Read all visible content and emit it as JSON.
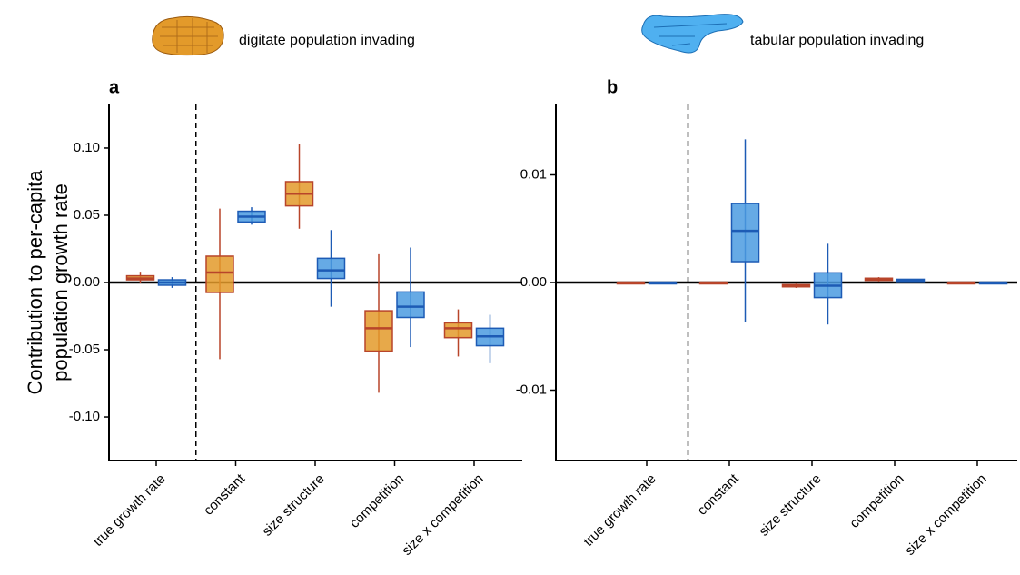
{
  "chart_data": [
    {
      "type": "box",
      "panel": "a",
      "ylabel": [
        "Contribution to per-capita",
        "population growth rate"
      ],
      "categories": [
        "true growth rate",
        "constant",
        "size structure",
        "competition",
        "size x competition"
      ],
      "ylim": [
        -0.1324,
        0.1324
      ],
      "yticks": [
        {
          "value": 0.1,
          "label": "0.10"
        },
        {
          "value": 0.05,
          "label": "0.05"
        },
        {
          "value": 0,
          "label": "0.00"
        },
        {
          "value": -0.05,
          "label": "-0.05"
        },
        {
          "value": -0.1,
          "label": "-0.10"
        }
      ],
      "series": [
        {
          "name": "digitate population invading",
          "color": "#e39a2a",
          "line_color": "#b8452a",
          "values": [
            {
              "min": 0.0,
              "q1": 0.002,
              "median": 0.003,
              "q3": 0.005,
              "max": 0.008
            },
            {
              "min": -0.057,
              "q1": -0.0074,
              "median": 0.0074,
              "q3": 0.0196,
              "max": 0.055
            },
            {
              "min": 0.04,
              "q1": 0.057,
              "median": 0.066,
              "q3": 0.075,
              "max": 0.103
            },
            {
              "min": -0.082,
              "q1": -0.051,
              "median": -0.034,
              "q3": -0.021,
              "max": 0.021
            },
            {
              "min": -0.055,
              "q1": -0.041,
              "median": -0.034,
              "q3": -0.03,
              "max": -0.02
            }
          ]
        },
        {
          "name": "tabular population invading",
          "color": "#4b9be0",
          "line_color": "#1d5bb5",
          "values": [
            {
              "min": -0.004,
              "q1": -0.002,
              "median": 0.0,
              "q3": 0.002,
              "max": 0.004
            },
            {
              "min": 0.043,
              "q1": 0.045,
              "median": 0.049,
              "q3": 0.053,
              "max": 0.056
            },
            {
              "min": -0.018,
              "q1": 0.003,
              "median": 0.009,
              "q3": 0.018,
              "max": 0.039
            },
            {
              "min": -0.048,
              "q1": -0.026,
              "median": -0.018,
              "q3": -0.007,
              "max": 0.026
            },
            {
              "min": -0.06,
              "q1": -0.047,
              "median": -0.04,
              "q3": -0.034,
              "max": -0.024
            }
          ]
        }
      ]
    },
    {
      "type": "box",
      "panel": "b",
      "categories": [
        "true growth rate",
        "constant",
        "size structure",
        "competition",
        "size x competition"
      ],
      "ylim": [
        -0.01654,
        0.01654
      ],
      "yticks": [
        0.01,
        {
          "value": 0,
          "label": "0.00"
        },
        -0.01
      ],
      "series": [
        {
          "color": "#e39a2a",
          "line_color": "#b8452a",
          "values": [
            {
              "min": 0.0,
              "q1": 0.0,
              "median": 0.0,
              "q3": 0.0,
              "max": 0.0
            },
            {
              "min": 0.0,
              "q1": 0.0,
              "median": 0.0,
              "q3": 0.0,
              "max": 0.0
            },
            {
              "min": -0.0005,
              "q1": -0.0004,
              "median": -0.0003,
              "q3": -0.0002,
              "max": -0.0001
            },
            {
              "min": 0.0001,
              "q1": 0.0002,
              "median": 0.0003,
              "q3": 0.0004,
              "max": 0.0005
            },
            {
              "min": 0.0,
              "q1": 0.0,
              "median": 0.0,
              "q3": 0.0,
              "max": 0.0
            }
          ]
        },
        {
          "color": "#4b9be0",
          "line_color": "#1d5bb5",
          "values": [
            {
              "min": 0.0,
              "q1": 0.0,
              "median": 0.0,
              "q3": 0.0,
              "max": 0.0
            },
            {
              "min": -0.0037,
              "q1": 0.00194,
              "median": 0.0048,
              "q3": 0.00734,
              "max": 0.0133
            },
            {
              "min": -0.0039,
              "q1": -0.0014,
              "median": -0.0003,
              "q3": 0.0009,
              "max": 0.0036
            },
            {
              "min": 0.0001,
              "q1": 0.0001,
              "median": 0.0002,
              "q3": 0.0003,
              "max": 0.0003
            },
            {
              "min": 0.0,
              "q1": 0.0,
              "median": 0.0,
              "q3": 0.0,
              "max": 0.0
            }
          ]
        }
      ]
    }
  ]
}
